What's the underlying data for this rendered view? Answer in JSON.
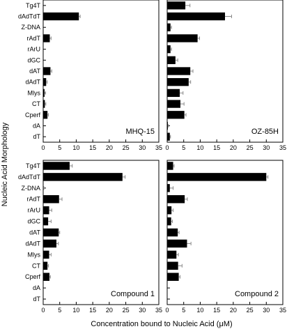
{
  "chart_data": [
    {
      "type": "bar",
      "orientation": "horizontal",
      "panel_label": "MHQ-15",
      "categories": [
        "Tg4T",
        "dAdTdT",
        "Z-DNA",
        "rAdT",
        "rArU",
        "dGC",
        "dAT",
        "dAdT",
        "Mlys",
        "CT",
        "Cperf",
        "dA",
        "dT"
      ],
      "values": [
        0,
        10.8,
        0,
        2.0,
        0,
        0,
        2.2,
        0.9,
        0.4,
        0.5,
        1.3,
        0,
        0
      ],
      "errors": [
        0,
        0.4,
        0,
        0.4,
        0,
        0,
        0.4,
        0.3,
        0.3,
        0.3,
        0.3,
        0,
        0
      ],
      "xlim": [
        0,
        35
      ],
      "xticks": [
        "0",
        "5",
        "10",
        "15",
        "20",
        "25",
        "30",
        "35"
      ]
    },
    {
      "type": "bar",
      "orientation": "horizontal",
      "panel_label": "OZ-85H",
      "categories": [
        "Tg4T",
        "dAdTdT",
        "Z-DNA",
        "rAdT",
        "rArU",
        "dGC",
        "dAT",
        "dAdT",
        "Mlys",
        "CT",
        "Cperf",
        "dA",
        "dT"
      ],
      "values": [
        5.5,
        17.5,
        1.0,
        9.2,
        1.0,
        2.5,
        7.0,
        6.5,
        3.8,
        4.0,
        5.2,
        0.2,
        0.8
      ],
      "errors": [
        1.4,
        2.0,
        0.3,
        0.6,
        0.3,
        0.7,
        0.8,
        0.6,
        1.0,
        1.1,
        0.5,
        0.1,
        0.2
      ],
      "xlim": [
        0,
        35
      ],
      "xticks": [
        "0",
        "5",
        "10",
        "15",
        "20",
        "25",
        "30",
        "35"
      ]
    },
    {
      "type": "bar",
      "orientation": "horizontal",
      "panel_label": "Compound 1",
      "categories": [
        "Tg4T",
        "dAdTdT",
        "Z-DNA",
        "rAdT",
        "rArU",
        "dGC",
        "dAT",
        "dAdT",
        "Mlys",
        "CT",
        "Cperf",
        "dA",
        "dT"
      ],
      "values": [
        8.0,
        24.0,
        0,
        4.8,
        1.8,
        1.5,
        4.7,
        4.0,
        1.8,
        1.3,
        1.9,
        0,
        0
      ],
      "errors": [
        0.8,
        0.8,
        0.2,
        0.9,
        0.8,
        0.9,
        0.3,
        0.6,
        0.6,
        0.3,
        0.3,
        0,
        0
      ],
      "xlim": [
        0,
        35
      ],
      "xticks": [
        "0",
        "5",
        "10",
        "15",
        "20",
        "25",
        "30",
        "35"
      ]
    },
    {
      "type": "bar",
      "orientation": "horizontal",
      "panel_label": "Compound 2",
      "categories": [
        "Tg4T",
        "dAdTdT",
        "Z-DNA",
        "rAdT",
        "rArU",
        "dGC",
        "dAT",
        "dAdT",
        "Mlys",
        "CT",
        "Cperf",
        "dA",
        "dT"
      ],
      "values": [
        1.8,
        30.0,
        0.8,
        5.3,
        1.3,
        1.2,
        3.2,
        6.0,
        2.8,
        3.3,
        3.5,
        0,
        0
      ],
      "errors": [
        0.3,
        0.5,
        1.0,
        0.8,
        0.5,
        0.4,
        0.4,
        1.2,
        0.6,
        1.2,
        0.4,
        0,
        0
      ],
      "xlim": [
        0,
        35
      ],
      "xticks": [
        "0",
        "5",
        "10",
        "15",
        "20",
        "25",
        "30",
        "35"
      ]
    }
  ],
  "labels": {
    "ylabel": "Nucleic Acid Morphology",
    "xlabel": "Concentration bound to Nucleic Acid (μM)"
  }
}
